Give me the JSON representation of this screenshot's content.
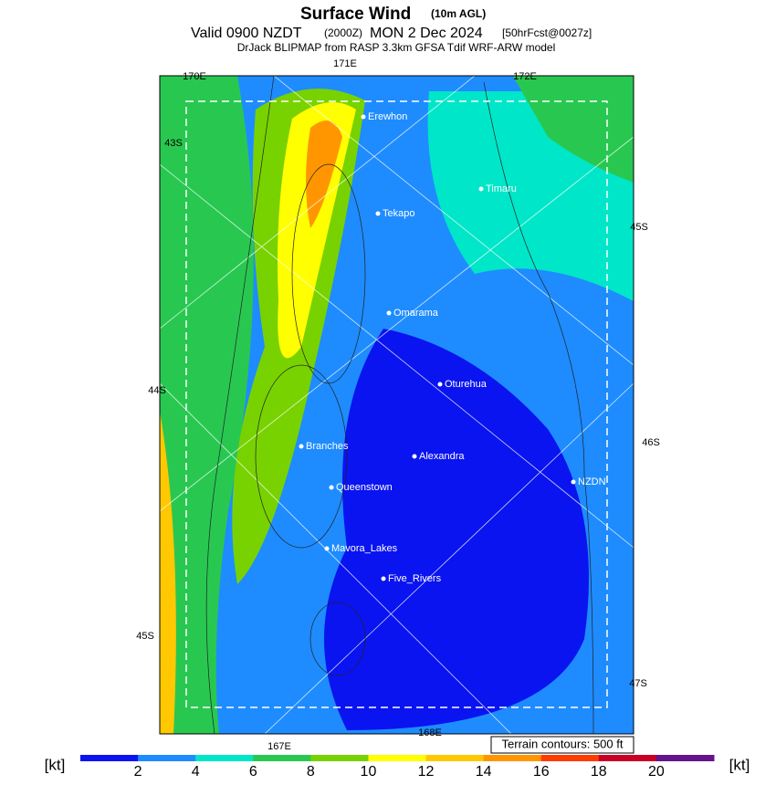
{
  "header": {
    "title": "Surface Wind",
    "title_note": "(10m AGL)",
    "valid": "Valid 0900 NZDT",
    "utc": "(2000Z)",
    "date": "MON 2 Dec 2024",
    "forecast": "[50hrFcst@0027z]",
    "source": "DrJack BLIPMAP from RASP 3.3km GFSA Tdif WRF-ARW model"
  },
  "graticule_labels": [
    "171E",
    "170E",
    "172E",
    "43S",
    "45S",
    "44S",
    "46S",
    "45S",
    "47S",
    "167E",
    "168E"
  ],
  "places": [
    "Erewhon",
    "Timaru",
    "Tekapo",
    "Omarama",
    "Oturehua",
    "Branches",
    "Alexandra",
    "NZDN",
    "Queenstown",
    "Mavora_Lakes",
    "Five_Rivers"
  ],
  "terrain_note": "Terrain contours: 500 ft",
  "legend": {
    "unit": "[kt]",
    "ticks": [
      2,
      4,
      6,
      8,
      10,
      12,
      14,
      16,
      18,
      20
    ],
    "colors": [
      "#0a14f0",
      "#1e8cff",
      "#00e6c8",
      "#28c850",
      "#78d200",
      "#ffff00",
      "#ffc800",
      "#ff9600",
      "#ff3c00",
      "#c80028",
      "#64148c"
    ]
  }
}
